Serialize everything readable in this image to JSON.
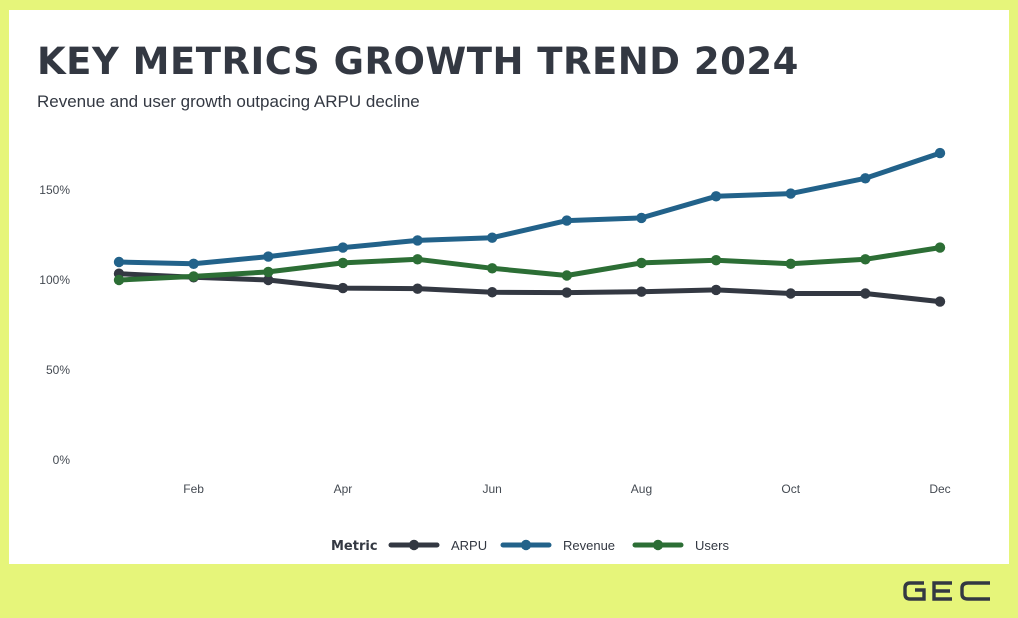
{
  "header": {
    "title": "KEY METRICS GROWTH TREND 2024",
    "subtitle": "Revenue and user growth outpacing ARPU decline"
  },
  "brand": {
    "logo_text": "GEC",
    "logo_color": "#333842"
  },
  "colors": {
    "background": "#e6f57a",
    "card": "#ffffff"
  },
  "chart_data": {
    "type": "line",
    "title": "KEY METRICS GROWTH TREND 2024",
    "subtitle": "Revenue and user growth outpacing ARPU decline",
    "x": [
      1,
      2,
      3,
      4,
      5,
      6,
      7,
      8,
      9,
      10,
      11,
      12
    ],
    "x_tick_values": [
      2,
      4,
      6,
      8,
      10,
      12
    ],
    "x_tick_labels": [
      "Feb",
      "Apr",
      "Jun",
      "Aug",
      "Oct",
      "Dec"
    ],
    "y_tick_values": [
      0,
      50,
      100,
      150
    ],
    "y_tick_labels": [
      "0%",
      "50%",
      "100%",
      "150%"
    ],
    "ylim": [
      0,
      180
    ],
    "xlim": [
      1,
      12
    ],
    "grid": false,
    "legend": {
      "title": "Metric",
      "position": "bottom"
    },
    "series": [
      {
        "name": "ARPU",
        "color": "#333842",
        "values": [
          103.5,
          101.5,
          100,
          95.5,
          95.2,
          93.2,
          93,
          93.5,
          94.5,
          92.5,
          92.5,
          88
        ]
      },
      {
        "name": "Revenue",
        "color": "#22628a",
        "values": [
          110,
          109,
          113,
          118,
          122,
          123.5,
          133,
          134.5,
          146.5,
          148,
          156.5,
          170.5
        ]
      },
      {
        "name": "Users",
        "color": "#2c6e35",
        "values": [
          100,
          102,
          104.5,
          109.5,
          111.5,
          106.5,
          102.5,
          109.5,
          111,
          109,
          111.5,
          118
        ]
      }
    ]
  }
}
